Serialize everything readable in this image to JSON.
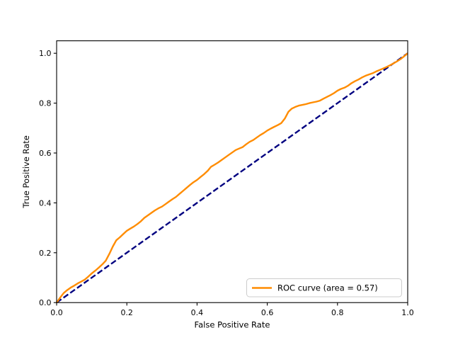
{
  "chart_data": {
    "type": "line",
    "title": "",
    "xlabel": "False Positive Rate",
    "ylabel": "True Positive Rate",
    "xlim": [
      0.0,
      1.0
    ],
    "ylim": [
      0.0,
      1.05
    ],
    "grid": false,
    "background_color": "#ffffff",
    "axes_edge_color": "#000000",
    "x_ticks": {
      "values": [
        0.0,
        0.2,
        0.4,
        0.6,
        0.8,
        1.0
      ],
      "labels": [
        "0.0",
        "0.2",
        "0.4",
        "0.6",
        "0.8",
        "1.0"
      ]
    },
    "y_ticks": {
      "values": [
        0.0,
        0.2,
        0.4,
        0.6,
        0.8,
        1.0
      ],
      "labels": [
        "0.0",
        "0.2",
        "0.4",
        "0.6",
        "0.8",
        "1.0"
      ]
    },
    "legend": {
      "position": "lower right",
      "entries": [
        {
          "label": "ROC curve (area = 0.57)",
          "color": "#ff8c00",
          "linestyle": "solid"
        }
      ]
    },
    "auc": 0.57,
    "series": [
      {
        "name": "chance-diagonal",
        "color": "#000080",
        "linestyle": "dashed",
        "linewidth_pt": 2,
        "points": [
          [
            0.0,
            0.0
          ],
          [
            1.0,
            1.0
          ]
        ]
      },
      {
        "name": "roc-curve",
        "color": "#ff8c00",
        "linestyle": "solid",
        "linewidth_pt": 2,
        "points": [
          [
            0.0,
            0.0
          ],
          [
            0.005,
            0.01
          ],
          [
            0.01,
            0.02
          ],
          [
            0.02,
            0.038
          ],
          [
            0.03,
            0.05
          ],
          [
            0.04,
            0.06
          ],
          [
            0.05,
            0.068
          ],
          [
            0.06,
            0.077
          ],
          [
            0.07,
            0.084
          ],
          [
            0.08,
            0.092
          ],
          [
            0.09,
            0.104
          ],
          [
            0.1,
            0.117
          ],
          [
            0.11,
            0.128
          ],
          [
            0.12,
            0.14
          ],
          [
            0.13,
            0.153
          ],
          [
            0.14,
            0.168
          ],
          [
            0.15,
            0.195
          ],
          [
            0.16,
            0.225
          ],
          [
            0.17,
            0.25
          ],
          [
            0.18,
            0.262
          ],
          [
            0.19,
            0.275
          ],
          [
            0.2,
            0.288
          ],
          [
            0.21,
            0.297
          ],
          [
            0.22,
            0.305
          ],
          [
            0.23,
            0.315
          ],
          [
            0.24,
            0.326
          ],
          [
            0.25,
            0.34
          ],
          [
            0.26,
            0.35
          ],
          [
            0.27,
            0.36
          ],
          [
            0.28,
            0.37
          ],
          [
            0.29,
            0.378
          ],
          [
            0.3,
            0.385
          ],
          [
            0.31,
            0.395
          ],
          [
            0.32,
            0.405
          ],
          [
            0.33,
            0.415
          ],
          [
            0.34,
            0.424
          ],
          [
            0.35,
            0.436
          ],
          [
            0.36,
            0.448
          ],
          [
            0.37,
            0.46
          ],
          [
            0.38,
            0.472
          ],
          [
            0.39,
            0.483
          ],
          [
            0.4,
            0.492
          ],
          [
            0.41,
            0.504
          ],
          [
            0.42,
            0.515
          ],
          [
            0.43,
            0.528
          ],
          [
            0.44,
            0.545
          ],
          [
            0.45,
            0.553
          ],
          [
            0.46,
            0.562
          ],
          [
            0.47,
            0.572
          ],
          [
            0.48,
            0.582
          ],
          [
            0.49,
            0.592
          ],
          [
            0.5,
            0.602
          ],
          [
            0.51,
            0.612
          ],
          [
            0.52,
            0.618
          ],
          [
            0.53,
            0.624
          ],
          [
            0.54,
            0.635
          ],
          [
            0.55,
            0.645
          ],
          [
            0.56,
            0.652
          ],
          [
            0.57,
            0.662
          ],
          [
            0.58,
            0.672
          ],
          [
            0.59,
            0.68
          ],
          [
            0.6,
            0.69
          ],
          [
            0.61,
            0.698
          ],
          [
            0.62,
            0.705
          ],
          [
            0.63,
            0.712
          ],
          [
            0.64,
            0.72
          ],
          [
            0.65,
            0.738
          ],
          [
            0.66,
            0.765
          ],
          [
            0.67,
            0.778
          ],
          [
            0.68,
            0.785
          ],
          [
            0.69,
            0.79
          ],
          [
            0.7,
            0.793
          ],
          [
            0.71,
            0.796
          ],
          [
            0.72,
            0.8
          ],
          [
            0.73,
            0.803
          ],
          [
            0.74,
            0.806
          ],
          [
            0.75,
            0.81
          ],
          [
            0.76,
            0.818
          ],
          [
            0.77,
            0.825
          ],
          [
            0.78,
            0.832
          ],
          [
            0.79,
            0.84
          ],
          [
            0.8,
            0.85
          ],
          [
            0.81,
            0.857
          ],
          [
            0.82,
            0.862
          ],
          [
            0.83,
            0.87
          ],
          [
            0.84,
            0.88
          ],
          [
            0.85,
            0.888
          ],
          [
            0.86,
            0.895
          ],
          [
            0.87,
            0.903
          ],
          [
            0.88,
            0.91
          ],
          [
            0.89,
            0.915
          ],
          [
            0.9,
            0.92
          ],
          [
            0.91,
            0.927
          ],
          [
            0.92,
            0.933
          ],
          [
            0.93,
            0.939
          ],
          [
            0.94,
            0.945
          ],
          [
            0.95,
            0.952
          ],
          [
            0.96,
            0.96
          ],
          [
            0.97,
            0.968
          ],
          [
            0.98,
            0.977
          ],
          [
            0.99,
            0.988
          ],
          [
            1.0,
            1.0
          ]
        ]
      }
    ]
  }
}
